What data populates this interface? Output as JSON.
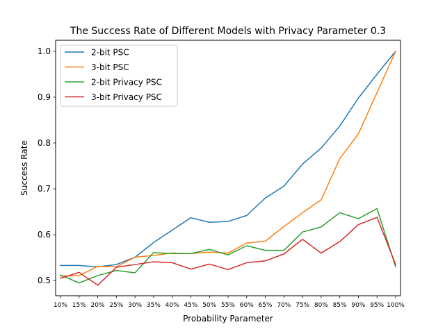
{
  "chart_data": {
    "type": "line",
    "title": "The Success Rate of Different Models with Privacy Parameter 0.3",
    "xlabel": "Probability Parameter",
    "ylabel": "Success Rate",
    "categories": [
      "10%",
      "15%",
      "20%",
      "25%",
      "30%",
      "35%",
      "40%",
      "45%",
      "50%",
      "55%",
      "60%",
      "65%",
      "70%",
      "75%",
      "80%",
      "85%",
      "90%",
      "95%",
      "100%"
    ],
    "yticks": [
      0.5,
      0.6,
      0.7,
      0.8,
      0.9,
      1.0
    ],
    "ytick_labels": [
      "0.5",
      "0.6",
      "0.7",
      "0.8",
      "0.9",
      "1.0"
    ],
    "ylim": [
      0.467,
      1.024
    ],
    "grid": false,
    "legend_position": "upper left",
    "series": [
      {
        "name": "2-bit PSC",
        "color": "#1f77b4",
        "values": [
          0.533,
          0.533,
          0.53,
          0.535,
          0.551,
          0.583,
          0.61,
          0.637,
          0.627,
          0.629,
          0.642,
          0.68,
          0.706,
          0.754,
          0.789,
          0.837,
          0.898,
          0.95,
          1.0
        ]
      },
      {
        "name": "3-bit PSC",
        "color": "#ff7f0e",
        "values": [
          0.51,
          0.511,
          0.531,
          0.53,
          0.551,
          0.555,
          0.56,
          0.559,
          0.562,
          0.56,
          0.582,
          0.586,
          0.618,
          0.648,
          0.676,
          0.766,
          0.82,
          0.91,
          1.0
        ]
      },
      {
        "name": "2-bit Privacy PSC",
        "color": "#2ca02c",
        "values": [
          0.512,
          0.495,
          0.511,
          0.522,
          0.517,
          0.561,
          0.559,
          0.559,
          0.568,
          0.556,
          0.576,
          0.566,
          0.566,
          0.606,
          0.617,
          0.648,
          0.635,
          0.657,
          0.53
        ]
      },
      {
        "name": "3-bit Privacy PSC",
        "color": "#d62728",
        "values": [
          0.505,
          0.518,
          0.49,
          0.529,
          0.535,
          0.541,
          0.539,
          0.525,
          0.536,
          0.524,
          0.539,
          0.543,
          0.558,
          0.59,
          0.56,
          0.585,
          0.622,
          0.638,
          0.535
        ]
      }
    ]
  }
}
